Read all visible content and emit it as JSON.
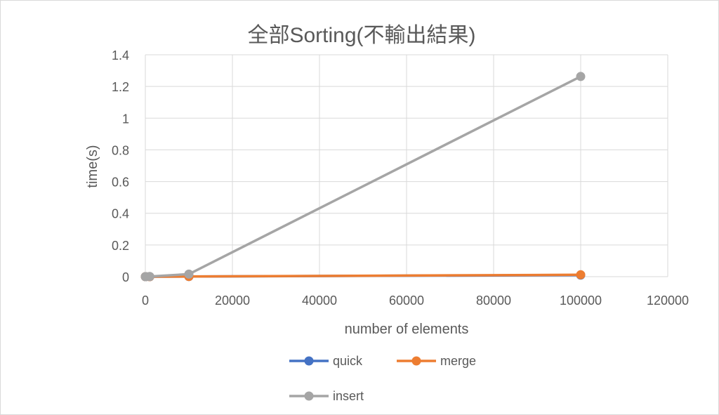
{
  "chart_data": {
    "type": "scatter",
    "title": "全部Sorting(不輸出結果)",
    "xlabel": "number of elements",
    "ylabel": "time(s)",
    "xlim": [
      0,
      120000
    ],
    "ylim": [
      0,
      1.4
    ],
    "xticks": [
      0,
      20000,
      40000,
      60000,
      80000,
      100000,
      120000
    ],
    "yticks": [
      0,
      0.2,
      0.4,
      0.6,
      0.8,
      1,
      1.2,
      1.4
    ],
    "grid": true,
    "legend_position": "bottom",
    "series": [
      {
        "name": "quick",
        "color": "#4472C4",
        "x": [
          10,
          100,
          1000,
          10000,
          100000
        ],
        "y": [
          0,
          0,
          0,
          0.001,
          0.01
        ]
      },
      {
        "name": "merge",
        "color": "#ED7D31",
        "x": [
          10,
          100,
          1000,
          10000,
          100000
        ],
        "y": [
          0,
          0,
          0,
          0.001,
          0.012
        ]
      },
      {
        "name": "insert",
        "color": "#A5A5A5",
        "x": [
          10,
          100,
          1000,
          10000,
          100000
        ],
        "y": [
          0,
          0,
          0.001,
          0.016,
          1.263
        ]
      }
    ]
  }
}
